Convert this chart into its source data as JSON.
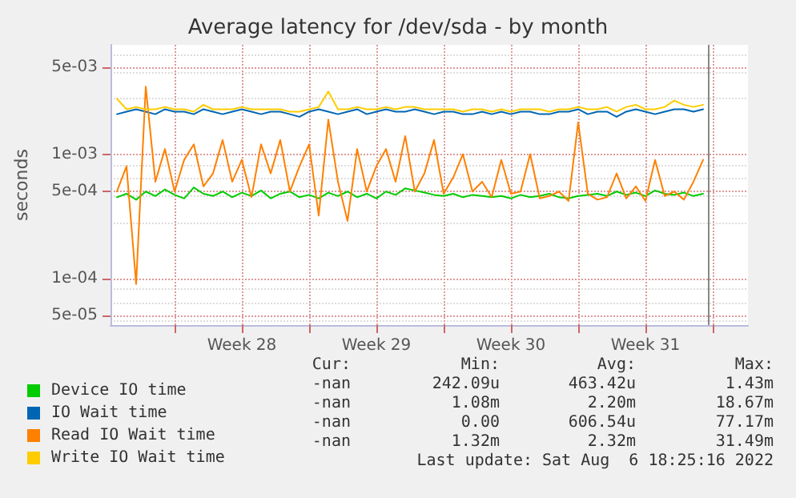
{
  "chart_data": {
    "type": "line",
    "title": "Average latency for /dev/sda - by month",
    "ylabel": "seconds",
    "log": "y",
    "grid": true,
    "legend": "bottom left",
    "marker": "none",
    "line_style": "solid",
    "x": [
      "2022-07-07T00:00",
      "2022-07-07T12:00",
      "2022-07-08T00:00",
      "2022-07-08T12:00",
      "2022-07-09T00:00",
      "2022-07-09T12:00",
      "2022-07-10T00:00",
      "2022-07-10T12:00",
      "2022-07-11T00:00",
      "2022-07-11T12:00",
      "2022-07-12T00:00",
      "2022-07-12T12:00",
      "2022-07-13T00:00",
      "2022-07-13T12:00",
      "2022-07-14T00:00",
      "2022-07-14T12:00",
      "2022-07-15T00:00",
      "2022-07-15T12:00",
      "2022-07-16T00:00",
      "2022-07-16T12:00",
      "2022-07-17T00:00",
      "2022-07-17T12:00",
      "2022-07-18T00:00",
      "2022-07-18T12:00",
      "2022-07-19T00:00",
      "2022-07-19T12:00",
      "2022-07-20T00:00",
      "2022-07-20T12:00",
      "2022-07-21T00:00",
      "2022-07-21T12:00",
      "2022-07-22T00:00",
      "2022-07-22T12:00",
      "2022-07-23T00:00",
      "2022-07-23T12:00",
      "2022-07-24T00:00",
      "2022-07-24T12:00",
      "2022-07-25T00:00",
      "2022-07-25T12:00",
      "2022-07-26T00:00",
      "2022-07-26T12:00",
      "2022-07-27T00:00",
      "2022-07-27T12:00",
      "2022-07-28T00:00",
      "2022-07-28T12:00",
      "2022-07-29T00:00",
      "2022-07-29T12:00",
      "2022-07-30T00:00",
      "2022-07-30T12:00",
      "2022-07-31T00:00",
      "2022-07-31T12:00",
      "2022-08-01T00:00",
      "2022-08-01T12:00",
      "2022-08-02T00:00",
      "2022-08-02T12:00",
      "2022-08-03T00:00",
      "2022-08-03T12:00",
      "2022-08-04T00:00",
      "2022-08-04T12:00",
      "2022-08-05T00:00",
      "2022-08-05T12:00",
      "2022-08-06T00:00",
      "2022-08-06T12:00"
    ],
    "xlim": [
      "2022-07-06T16:00",
      "2022-08-08T20:00"
    ],
    "xticks": [
      {
        "value": "2022-07-10T00:00",
        "label": null
      },
      {
        "value": "2022-07-13T12:00",
        "label": "Week 28"
      },
      {
        "value": "2022-07-17T00:00",
        "label": null
      },
      {
        "value": "2022-07-20T12:00",
        "label": "Week 29"
      },
      {
        "value": "2022-07-24T00:00",
        "label": null
      },
      {
        "value": "2022-07-27T12:00",
        "label": "Week 30"
      },
      {
        "value": "2022-07-31T00:00",
        "label": null
      },
      {
        "value": "2022-08-03T12:00",
        "label": "Week 31"
      },
      {
        "value": "2022-08-07T00:00",
        "label": null
      }
    ],
    "ylim": [
      4.2e-05,
      0.0076
    ],
    "yticks": [
      {
        "value": 5e-05,
        "label": "5e-05"
      },
      {
        "value": 0.0001,
        "label": "1e-04"
      },
      {
        "value": 0.0005,
        "label": "5e-04"
      },
      {
        "value": 0.001,
        "label": "1e-03"
      },
      {
        "value": 0.005,
        "label": "5e-03"
      }
    ],
    "ref_lines": [
      {
        "axis": "x",
        "value": "2022-08-06T18:25",
        "label": null,
        "color": "#888888"
      }
    ],
    "series": [
      {
        "name": "Device IO time",
        "color": "#00cc00",
        "values": [
          0.00045,
          0.00048,
          0.00043,
          0.0005,
          0.00046,
          0.00052,
          0.00047,
          0.00044,
          0.00054,
          0.00048,
          0.00046,
          0.0005,
          0.00045,
          0.00049,
          0.00046,
          0.00051,
          0.00044,
          0.00048,
          0.0005,
          0.00045,
          0.00047,
          0.00044,
          0.00049,
          0.00046,
          0.0005,
          0.00045,
          0.00048,
          0.00044,
          0.0005,
          0.00047,
          0.00053,
          0.00051,
          0.00049,
          0.00047,
          0.00046,
          0.00048,
          0.00045,
          0.00047,
          0.00046,
          0.00045,
          0.00046,
          0.00044,
          0.00047,
          0.00045,
          0.00046,
          0.00048,
          0.00045,
          0.00044,
          0.00046,
          0.00047,
          0.00048,
          0.00046,
          0.0005,
          0.00047,
          0.00049,
          0.00046,
          0.00051,
          0.00048,
          0.00047,
          0.00049,
          0.00046,
          0.00048
        ]
      },
      {
        "name": "IO Wait time",
        "color": "#0066b3",
        "values": [
          0.0021,
          0.0022,
          0.0023,
          0.0022,
          0.0021,
          0.0023,
          0.0022,
          0.0022,
          0.0021,
          0.0023,
          0.0022,
          0.0021,
          0.0022,
          0.0023,
          0.0022,
          0.0021,
          0.0022,
          0.0022,
          0.0021,
          0.002,
          0.0022,
          0.0023,
          0.0022,
          0.0021,
          0.0022,
          0.0023,
          0.0021,
          0.0022,
          0.0023,
          0.0022,
          0.0022,
          0.0023,
          0.0022,
          0.0021,
          0.0022,
          0.0022,
          0.0021,
          0.0021,
          0.0022,
          0.0021,
          0.0022,
          0.0021,
          0.0022,
          0.0022,
          0.0021,
          0.0021,
          0.0022,
          0.0022,
          0.0023,
          0.0021,
          0.0022,
          0.0022,
          0.002,
          0.0022,
          0.0023,
          0.0022,
          0.0021,
          0.0022,
          0.0023,
          0.0023,
          0.0022,
          0.0023
        ]
      },
      {
        "name": "Read IO Wait time",
        "color": "#ff8000",
        "values": [
          0.0005,
          0.0008,
          9e-05,
          0.0035,
          0.0006,
          0.0011,
          0.0005,
          0.0009,
          0.0012,
          0.00055,
          0.0007,
          0.0013,
          0.0006,
          0.0009,
          0.00045,
          0.0012,
          0.0007,
          0.0013,
          0.0005,
          0.0008,
          0.0012,
          0.00032,
          0.0019,
          0.0006,
          0.00029,
          0.0011,
          0.0005,
          0.0008,
          0.0011,
          0.0006,
          0.0014,
          0.0005,
          0.0007,
          0.0013,
          0.00048,
          0.00065,
          0.001,
          0.0005,
          0.0006,
          0.00045,
          0.0009,
          0.00048,
          0.0005,
          0.001,
          0.00044,
          0.00046,
          0.0005,
          0.00042,
          0.0018,
          0.00048,
          0.00043,
          0.00045,
          0.0007,
          0.00044,
          0.00055,
          0.00042,
          0.0009,
          0.00046,
          0.0005,
          0.00043,
          0.0006,
          0.0009
        ]
      },
      {
        "name": "Write IO Wait time",
        "color": "#ffcc00",
        "values": [
          0.0028,
          0.0023,
          0.0024,
          0.0023,
          0.0023,
          0.0024,
          0.0023,
          0.0023,
          0.0022,
          0.0025,
          0.0023,
          0.0023,
          0.0023,
          0.0024,
          0.0023,
          0.0023,
          0.0023,
          0.0023,
          0.0022,
          0.0022,
          0.0023,
          0.0024,
          0.0032,
          0.0023,
          0.0023,
          0.0024,
          0.0023,
          0.0023,
          0.0024,
          0.0023,
          0.0024,
          0.0024,
          0.0023,
          0.0023,
          0.0023,
          0.0023,
          0.0022,
          0.0023,
          0.0023,
          0.0022,
          0.0023,
          0.0022,
          0.0023,
          0.0023,
          0.0023,
          0.0022,
          0.0023,
          0.0023,
          0.0024,
          0.0023,
          0.0023,
          0.0024,
          0.0022,
          0.0024,
          0.0025,
          0.0023,
          0.0023,
          0.0024,
          0.0027,
          0.0025,
          0.0024,
          0.0025
        ]
      }
    ],
    "annotations": [
      "Cur:",
      "Min:",
      "Avg:",
      "Max:",
      "-nan",
      "242.09u",
      "463.42u",
      "1.43m",
      "-nan",
      "1.08m",
      "2.20m",
      "18.67m",
      "-nan",
      "0.00",
      "606.54u",
      "77.17m",
      "-nan",
      "1.32m",
      "2.32m",
      "31.49m",
      "Last update: Sat Aug  6 18:25:16 2022"
    ]
  }
}
